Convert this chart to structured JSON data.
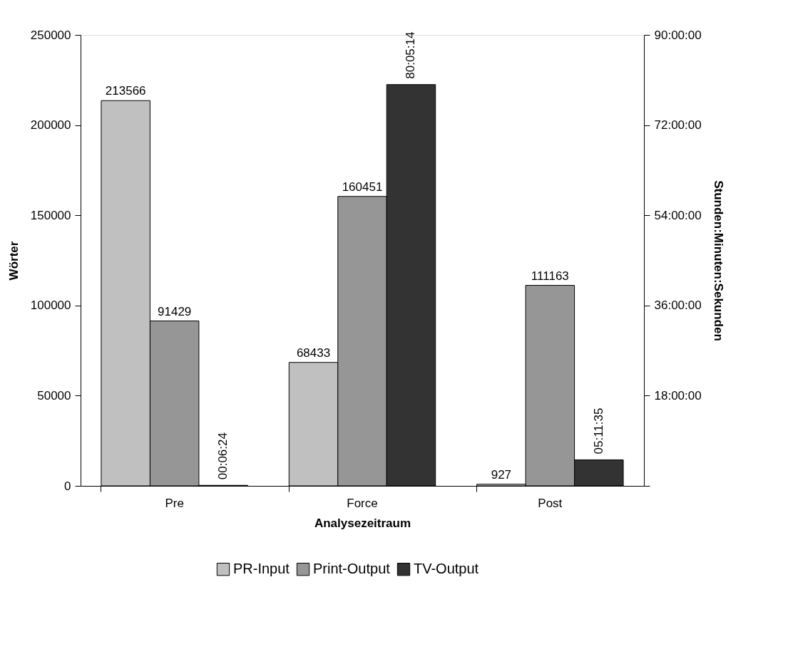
{
  "chart_data": {
    "type": "bar",
    "xlabel": "Analysezeitraum",
    "ylabel": "Wörter",
    "y2label": "Stunden:Minuten:Sekunden",
    "categories": [
      "Pre",
      "Force",
      "Post"
    ],
    "series": [
      {
        "name": "PR-Input",
        "color": "#c0c0c0",
        "values": [
          213566,
          68433,
          927
        ],
        "value_labels": [
          "213566",
          "68433",
          "927"
        ]
      },
      {
        "name": "Print-Output",
        "color": "#969696",
        "values": [
          91429,
          160451,
          111163
        ],
        "value_labels": [
          "91429",
          "160451",
          "111163"
        ]
      },
      {
        "name": "TV-Output",
        "color": "#333333",
        "axis": "y2",
        "values": [
          0.1067,
          80.0872,
          5.1931
        ],
        "value_labels": [
          "00:06:24",
          "80:05:14",
          "05:11:35"
        ]
      }
    ],
    "ylim": [
      0,
      250000
    ],
    "yticks": [
      0,
      50000,
      100000,
      150000,
      200000,
      250000
    ],
    "y2lim": [
      0,
      90
    ],
    "y2ticks": [
      {
        "value": 0,
        "label": null
      },
      {
        "value": 18,
        "label": "18:00:00"
      },
      {
        "value": 36,
        "label": "36:00:00"
      },
      {
        "value": 54,
        "label": "54:00:00"
      },
      {
        "value": 72,
        "label": "72:00:00"
      },
      {
        "value": 90,
        "label": "90:00:00"
      }
    ],
    "grid": false,
    "legend": "bottom"
  }
}
